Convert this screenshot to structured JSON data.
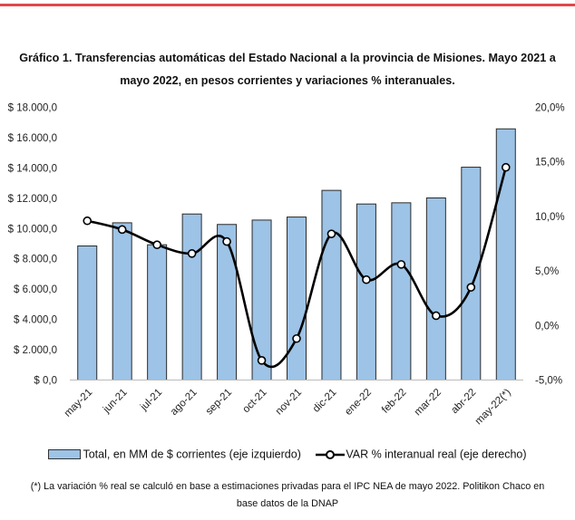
{
  "accent_color": "#e0474c",
  "chart_data": {
    "type": "bar+line",
    "title": "Gráfico 1. Transferencias automáticas del Estado Nacional a la provincia de Misiones. Mayo 2021 a mayo 2022, en pesos corrientes y variaciones % interanuales.",
    "categories": [
      "may-21",
      "jun-21",
      "jul-21",
      "ago-21",
      "sep-21",
      "oct-21",
      "nov-21",
      "dic-21",
      "ene-22",
      "feb-22",
      "mar-22",
      "abr-22",
      "may-22(*)"
    ],
    "series": [
      {
        "name": "Total, en MM de $ corrientes (eje izquierdo)",
        "type": "bar",
        "axis": "left",
        "color": "#9dc3e6",
        "values": [
          8850,
          10380,
          8930,
          10960,
          10270,
          10560,
          10760,
          12520,
          11620,
          11700,
          12020,
          14050,
          16580
        ]
      },
      {
        "name": "VAR % interanual real (eje derecho)",
        "type": "line",
        "axis": "right",
        "color": "#000000",
        "values": [
          9.6,
          8.8,
          7.4,
          6.6,
          7.7,
          -3.2,
          -1.2,
          8.4,
          4.2,
          5.6,
          0.9,
          3.5,
          14.5
        ]
      }
    ],
    "left_axis": {
      "range": [
        0,
        18000
      ],
      "ticks": [
        "$ 0,0",
        "$ 2.000,0",
        "$ 4.000,0",
        "$ 6.000,0",
        "$ 8.000,0",
        "$ 10.000,0",
        "$ 12.000,0",
        "$ 14.000,0",
        "$ 16.000,0",
        "$ 18.000,0"
      ]
    },
    "right_axis": {
      "range": [
        -5,
        20
      ],
      "ticks": [
        "-5,0%",
        "0,0%",
        "5,0%",
        "10,0%",
        "15,0%",
        "20,0%"
      ]
    },
    "grid": false,
    "legend_placement": "bottom"
  },
  "title_line1": "Gráfico 1. Transferencias automáticas del Estado Nacional a la provincia de Misiones. Mayo 2021 a",
  "title_line2": "mayo 2022, en pesos corrientes y variaciones % interanuales.",
  "legend": {
    "bar_label": "Total, en MM de $ corrientes (eje izquierdo)",
    "line_label": "VAR % interanual real (eje derecho)"
  },
  "footnote_line1": "(*) La variación % real se calculó en base a estimaciones privadas para el IPC NEA de mayo 2022. Politikon Chaco en",
  "footnote_line2": "base datos de la DNAP"
}
